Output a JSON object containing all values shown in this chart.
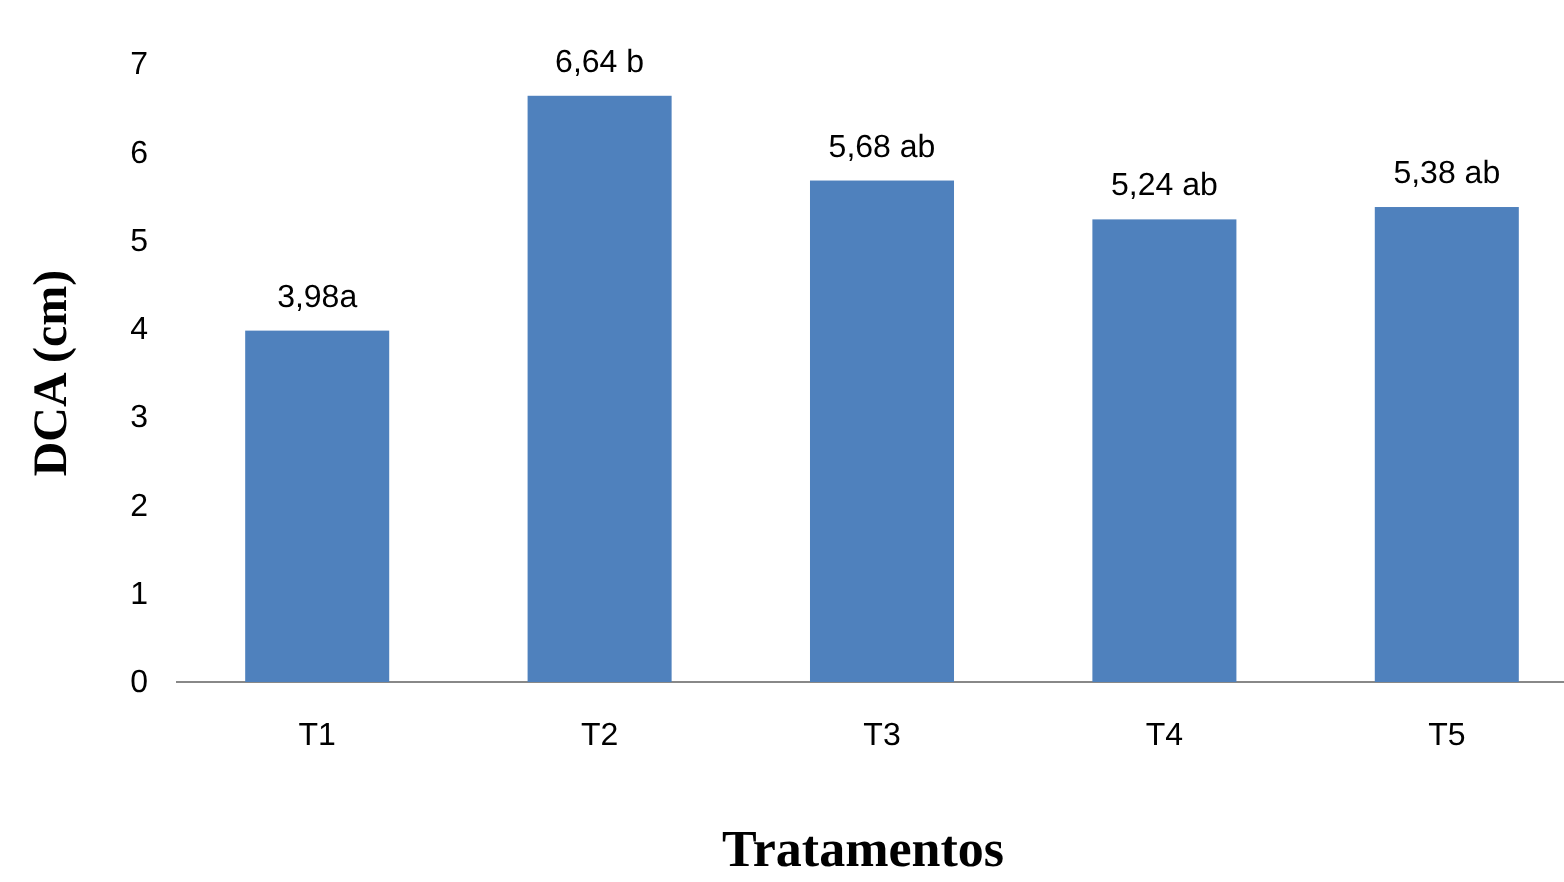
{
  "chart_data": {
    "type": "bar",
    "xlabel": "Tratamentos",
    "ylabel": "DCA (cm)",
    "categories": [
      "T1",
      "T2",
      "T3",
      "T4",
      "T5"
    ],
    "values": [
      3.98,
      6.64,
      5.68,
      5.24,
      5.38
    ],
    "value_labels": [
      "3,98a",
      "6,64 b",
      "5,68 ab",
      "5,24 ab",
      "5,38 ab"
    ],
    "color": "#4f81bd",
    "ylim": [
      0,
      7
    ],
    "yticks": [
      0,
      1,
      2,
      3,
      4,
      5,
      6,
      7
    ],
    "grid": false
  }
}
